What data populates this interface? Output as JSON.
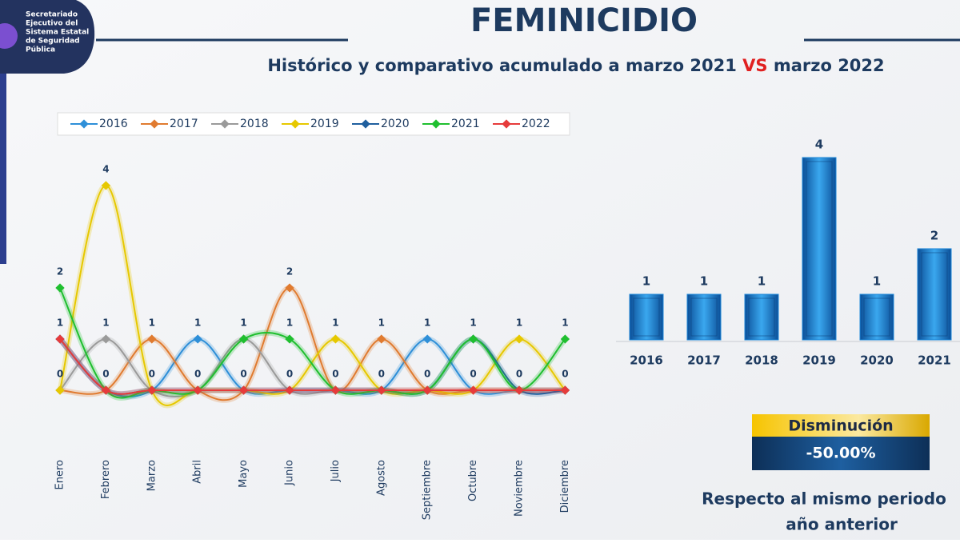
{
  "header": {
    "logo_text": [
      "Secretariado",
      "Ejecutivo del",
      "Sistema Estatal",
      "de Seguridad",
      "Pública"
    ],
    "title": "FEMINICIDIO",
    "subtitle": {
      "before": "Histórico y comparativo acumulado a marzo 2021 ",
      "highlight": "VS",
      "after": " marzo 2022"
    }
  },
  "chart_data": [
    {
      "type": "line",
      "categories": [
        "Enero",
        "Febrero",
        "Marzo",
        "Abril",
        "Mayo",
        "Junio",
        "Julio",
        "Agosto",
        "Septiembre",
        "Octubre",
        "Noviembre",
        "Diciembre"
      ],
      "series": [
        {
          "name": "2016",
          "color": "#2e8fd8",
          "values": [
            1,
            0,
            0,
            1,
            0,
            0,
            0,
            0,
            1,
            0,
            0,
            0
          ]
        },
        {
          "name": "2017",
          "color": "#e07b30",
          "values": [
            0,
            0,
            1,
            0,
            0,
            2,
            0,
            1,
            0,
            0,
            0,
            0
          ]
        },
        {
          "name": "2018",
          "color": "#9a9a9a",
          "values": [
            0,
            1,
            0,
            0,
            1,
            0,
            0,
            0,
            0,
            0,
            0,
            0
          ]
        },
        {
          "name": "2019",
          "color": "#e6c800",
          "values": [
            0,
            4,
            0,
            0,
            0,
            0,
            1,
            0,
            0,
            0,
            1,
            0
          ]
        },
        {
          "name": "2020",
          "color": "#1f5f9e",
          "values": [
            1,
            0,
            0,
            0,
            0,
            0,
            0,
            0,
            0,
            1,
            0,
            0
          ]
        },
        {
          "name": "2021",
          "color": "#1fbf2f",
          "values": [
            2,
            0,
            0,
            0,
            1,
            1,
            0,
            0,
            0,
            1,
            0,
            1
          ]
        },
        {
          "name": "2022",
          "color": "#e63b3b",
          "values": [
            1,
            0,
            0,
            0,
            0,
            0,
            0,
            0,
            0,
            0,
            0,
            0
          ]
        }
      ]
    },
    {
      "type": "bar",
      "color": "#1e88d8",
      "categories": [
        "2016",
        "2017",
        "2018",
        "2019",
        "2020",
        "2021"
      ],
      "values": [
        1,
        1,
        1,
        4,
        1,
        2
      ]
    }
  ],
  "summary": {
    "label": "Disminución",
    "value": "-50.00%",
    "note": [
      "Respecto al mismo periodo",
      "año anterior"
    ]
  }
}
